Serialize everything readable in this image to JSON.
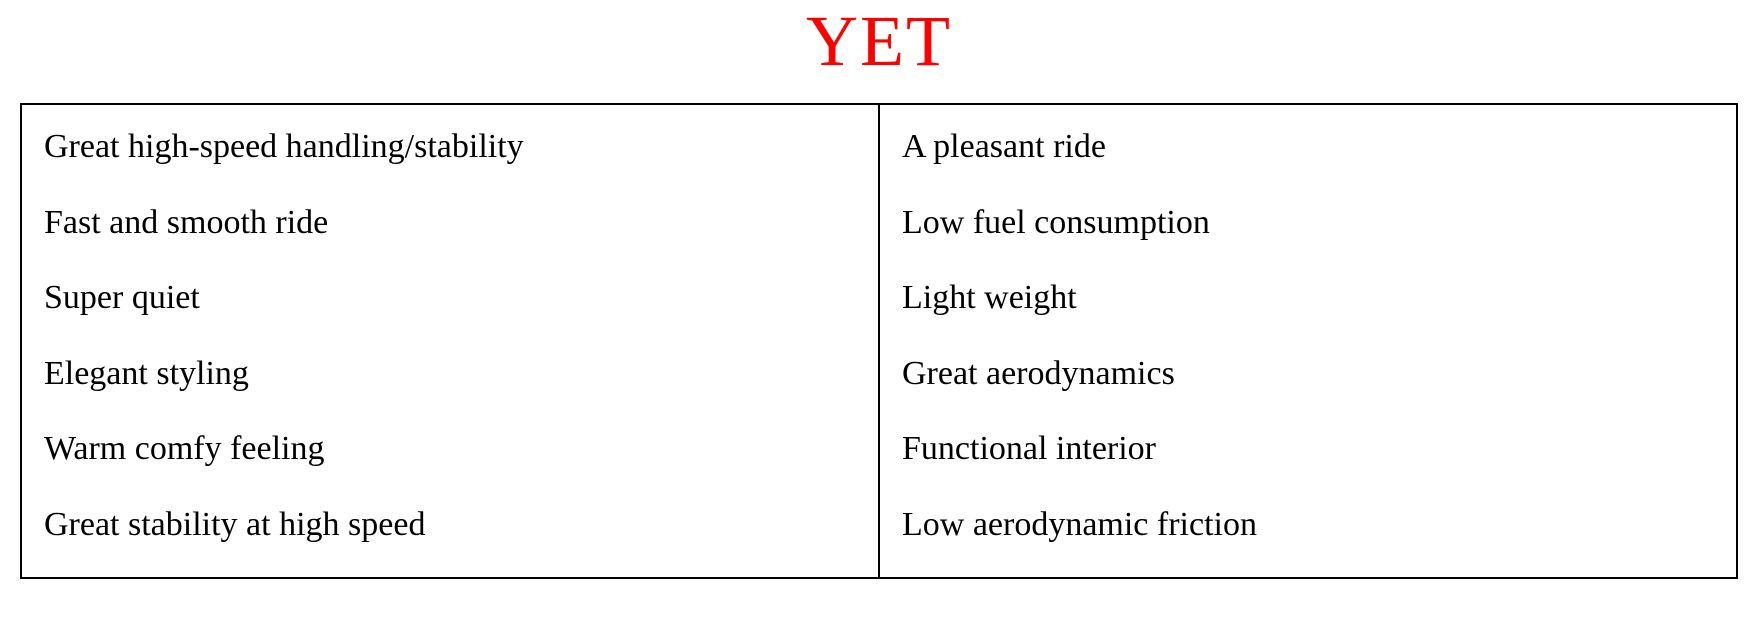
{
  "title": "YET",
  "title_color": "#ff0000",
  "title_fontsize": 72,
  "body_fontsize": 34,
  "body_color": "#000000",
  "border_color": "#000000",
  "background_color": "#ffffff",
  "table": {
    "type": "table",
    "columns": 2,
    "left_column": {
      "items": [
        "Great high-speed handling/stability",
        "Fast and smooth ride",
        "Super quiet",
        "Elegant styling",
        "Warm comfy feeling",
        "Great stability at high speed"
      ]
    },
    "right_column": {
      "items": [
        "A pleasant ride",
        "Low fuel consumption",
        "Light weight",
        "Great aerodynamics",
        "Functional interior",
        "Low aerodynamic friction"
      ]
    }
  }
}
